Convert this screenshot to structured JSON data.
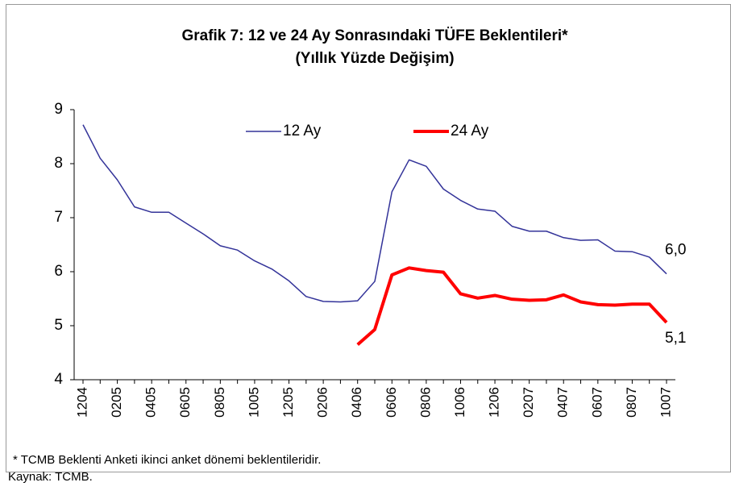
{
  "chart_data": {
    "type": "line",
    "title": "Grafik 7: 12 ve 24 Ay Sonrasındaki TÜFE Beklentileri*",
    "subtitle": "(Yıllık Yüzde Değişim)",
    "categories": [
      "1204",
      null,
      "0205",
      null,
      "0405",
      null,
      "0605",
      null,
      "0805",
      null,
      "1005",
      null,
      "1205",
      null,
      "0206",
      null,
      "0406",
      null,
      "0606",
      null,
      "0806",
      null,
      "1006",
      null,
      "1206",
      null,
      "0207",
      null,
      "0407",
      null,
      "0607",
      null,
      "0807",
      null,
      "1007"
    ],
    "series": [
      {
        "name": "12 Ay",
        "color": "#333399",
        "values": [
          8.72,
          8.1,
          7.7,
          7.2,
          7.1,
          7.1,
          6.9,
          6.7,
          6.48,
          6.4,
          6.2,
          6.05,
          5.83,
          5.54,
          5.45,
          5.44,
          5.46,
          5.82,
          7.48,
          8.07,
          7.95,
          7.53,
          7.32,
          7.16,
          7.12,
          6.84,
          6.75,
          6.75,
          6.63,
          6.58,
          6.59,
          6.38,
          6.37,
          6.27,
          5.96
        ],
        "value_labels": [
          null,
          null,
          null,
          null,
          null,
          null,
          null,
          null,
          null,
          null,
          null,
          null,
          null,
          null,
          null,
          null,
          null,
          null,
          null,
          null,
          null,
          null,
          null,
          null,
          null,
          null,
          null,
          null,
          null,
          null,
          null,
          null,
          null,
          null,
          "6,0"
        ]
      },
      {
        "name": "24 Ay",
        "color": "#ff0000",
        "values": [
          null,
          null,
          null,
          null,
          null,
          null,
          null,
          null,
          null,
          null,
          null,
          null,
          null,
          null,
          null,
          null,
          4.65,
          4.93,
          5.94,
          6.07,
          6.02,
          5.99,
          5.59,
          5.51,
          5.56,
          5.49,
          5.47,
          5.48,
          5.57,
          5.44,
          5.39,
          5.38,
          5.4,
          5.4,
          5.06
        ],
        "value_labels": [
          null,
          null,
          null,
          null,
          null,
          null,
          null,
          null,
          null,
          null,
          null,
          null,
          null,
          null,
          null,
          null,
          null,
          null,
          null,
          null,
          null,
          null,
          null,
          null,
          null,
          null,
          null,
          null,
          null,
          null,
          null,
          null,
          null,
          null,
          "5,1"
        ]
      }
    ],
    "ylim": [
      4,
      9
    ],
    "yticks": [
      4,
      5,
      6,
      7,
      8,
      9
    ],
    "grid": false,
    "legend": "top",
    "footnotes": [
      "* TCMB Beklenti Anketi ikinci anket dönemi beklentileridir.",
      "Kaynak: TCMB."
    ]
  }
}
